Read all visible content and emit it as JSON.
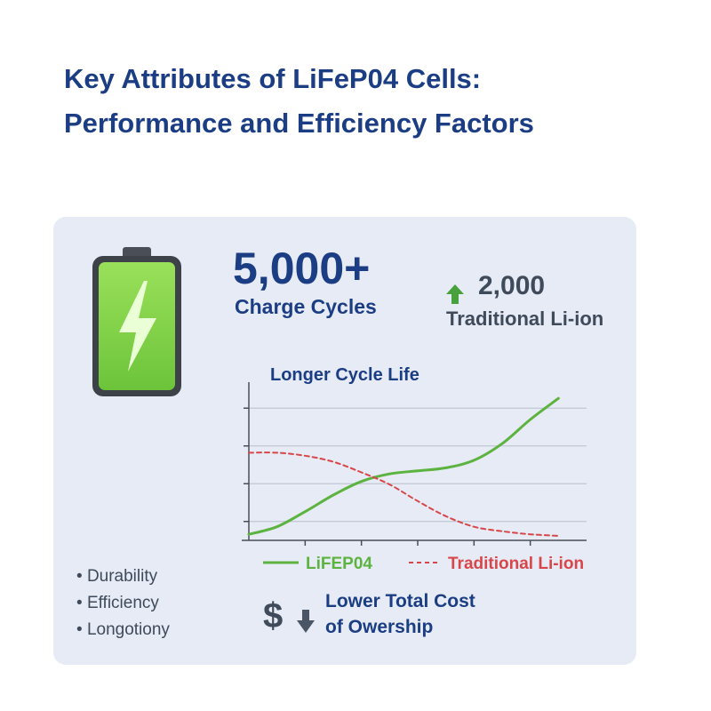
{
  "header": {
    "title_line1": "Key Attributes of LiFeP04 Cells:",
    "title_line2": "Performance and Efficiency Factors"
  },
  "stats": {
    "cycles_value": "5,000+",
    "cycles_label": "Charge Cycles",
    "comparison_value": "2,000",
    "comparison_label": "Traditional Li-ion"
  },
  "chart_data": {
    "type": "line",
    "title": "Longer Cycle Life",
    "xlabel": "",
    "ylabel": "",
    "x": [
      0,
      1,
      2,
      3,
      4,
      5,
      6,
      7,
      8,
      9,
      10,
      11
    ],
    "series": [
      {
        "name": "LiFEP04",
        "style": "solid",
        "color": "#5db33f",
        "values": [
          0.4,
          0.9,
          1.9,
          3.0,
          3.9,
          4.4,
          4.6,
          4.8,
          5.3,
          6.4,
          8.0,
          9.4
        ]
      },
      {
        "name": "Traditional Li-ion",
        "style": "dashed",
        "color": "#d9464a",
        "values": [
          5.8,
          5.8,
          5.6,
          5.2,
          4.5,
          3.7,
          2.6,
          1.6,
          0.9,
          0.6,
          0.4,
          0.3
        ]
      }
    ],
    "xlim": [
      0,
      12
    ],
    "ylim": [
      0,
      10
    ],
    "grid": true,
    "legend": "bottom"
  },
  "features": [
    "Durability",
    "Efficiency",
    "Longotiony"
  ],
  "cost": {
    "symbol": "$",
    "line1": "Lower Total Cost",
    "line2": "of Owership"
  },
  "colors": {
    "title": "#1b3d84",
    "panel": "#e6ebf5",
    "battery_green": "#7fd14a",
    "arrow_green": "#49a13c",
    "lifep_line": "#5db33f",
    "liion_line": "#d9464a"
  }
}
